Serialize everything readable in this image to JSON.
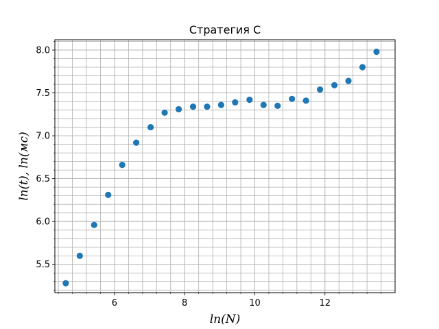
{
  "chart_data": {
    "type": "scatter",
    "title": "Стратегия С",
    "xlabel": "ln(N)",
    "ylabel": "ln(t), ln(мс)",
    "xlim": [
      4.3,
      14.0
    ],
    "ylim": [
      5.17,
      8.12
    ],
    "xticks": [
      6,
      8,
      10,
      12
    ],
    "xtick_labels": [
      "6",
      "8",
      "10",
      "12"
    ],
    "yticks": [
      5.5,
      6.0,
      6.5,
      7.0,
      7.5,
      8.0
    ],
    "ytick_labels": [
      "5.5",
      "6.0",
      "6.5",
      "7.0",
      "7.5",
      "8.0"
    ],
    "x_minor_step": 0.4,
    "y_minor_step": 0.1,
    "grid": "major and minor",
    "marker_color": "#1f77b4",
    "series": [
      {
        "x": [
          4.61,
          5.01,
          5.42,
          5.82,
          6.22,
          6.62,
          7.03,
          7.43,
          7.83,
          8.24,
          8.64,
          9.04,
          9.44,
          9.85,
          10.25,
          10.65,
          11.06,
          11.46,
          11.86,
          12.27,
          12.67,
          13.07,
          13.47
        ],
        "y": [
          5.28,
          5.6,
          5.96,
          6.31,
          6.66,
          6.92,
          7.1,
          7.27,
          7.31,
          7.34,
          7.34,
          7.36,
          7.39,
          7.42,
          7.36,
          7.35,
          7.43,
          7.41,
          7.54,
          7.59,
          7.64,
          7.8,
          7.98
        ]
      }
    ]
  }
}
